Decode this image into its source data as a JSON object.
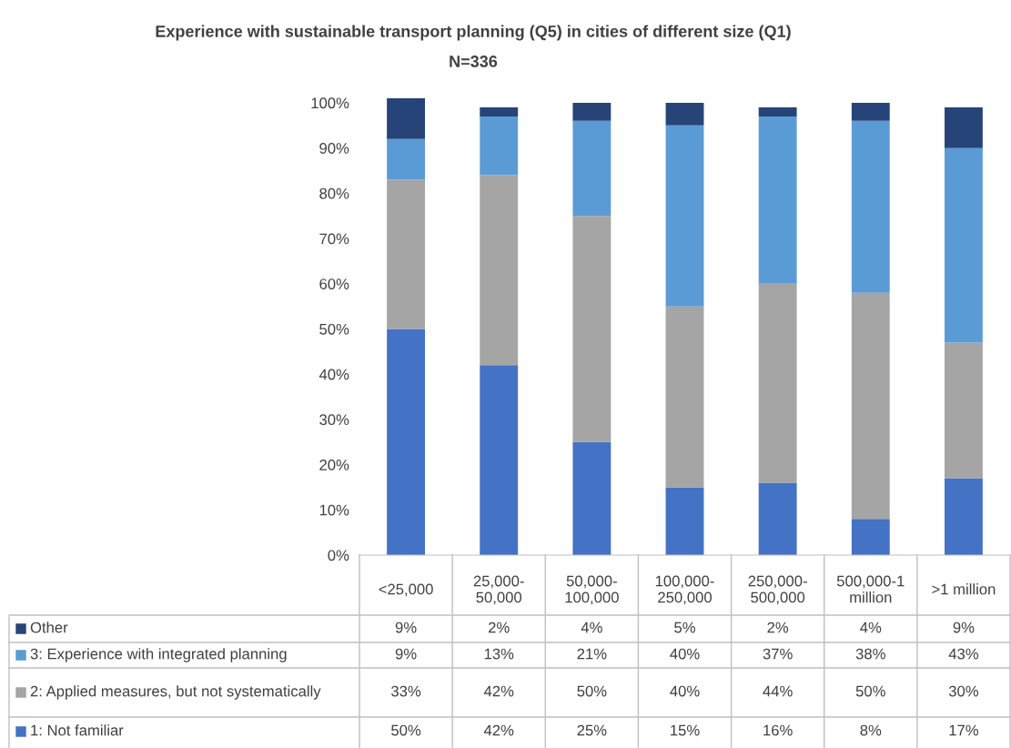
{
  "chart_data": {
    "type": "bar",
    "stacked": true,
    "title": "Experience with sustainable transport planning (Q5) in cities of different size (Q1)",
    "subtitle": "N=336",
    "categories": [
      "<25,000",
      "25,000-\n50,000",
      "50,000-\n100,000",
      "100,000-\n250,000",
      "250,000-\n500,000",
      "500,000-1\nmillion",
      ">1 million"
    ],
    "series": [
      {
        "name": "1: Not familiar",
        "color": "#4472c4",
        "values": [
          50,
          42,
          25,
          15,
          16,
          8,
          17
        ],
        "value_labels": [
          "50%",
          "42%",
          "25%",
          "15%",
          "16%",
          "8%",
          "17%"
        ]
      },
      {
        "name": "2: Applied measures, but not systematically",
        "color": "#a5a5a5",
        "values": [
          33,
          42,
          50,
          40,
          44,
          50,
          30
        ],
        "value_labels": [
          "33%",
          "42%",
          "50%",
          "40%",
          "44%",
          "50%",
          "30%"
        ]
      },
      {
        "name": "3: Experience with integrated planning",
        "color": "#5b9bd5",
        "values": [
          9,
          13,
          21,
          40,
          37,
          38,
          43
        ],
        "value_labels": [
          "9%",
          "13%",
          "21%",
          "40%",
          "37%",
          "38%",
          "43%"
        ]
      },
      {
        "name": "Other",
        "color": "#264478",
        "values": [
          9,
          2,
          4,
          5,
          2,
          4,
          9
        ],
        "value_labels": [
          "9%",
          "2%",
          "4%",
          "5%",
          "2%",
          "4%",
          "9%"
        ]
      }
    ],
    "ylim": [
      0,
      101
    ],
    "yticks": [
      {
        "value": 0,
        "label": "0%"
      },
      {
        "value": 10,
        "label": "10%"
      },
      {
        "value": 20,
        "label": "20%"
      },
      {
        "value": 30,
        "label": "30%"
      },
      {
        "value": 40,
        "label": "40%"
      },
      {
        "value": 50,
        "label": "50%"
      },
      {
        "value": 60,
        "label": "60%"
      },
      {
        "value": 70,
        "label": "70%"
      },
      {
        "value": 80,
        "label": "80%"
      },
      {
        "value": 90,
        "label": "90%"
      },
      {
        "value": 100,
        "label": "100%"
      }
    ],
    "grid": false,
    "legend": "bottom"
  }
}
